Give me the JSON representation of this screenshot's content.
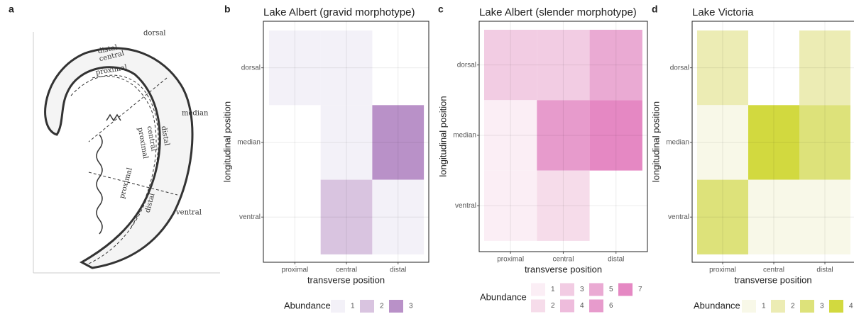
{
  "panels": [
    "a",
    "b",
    "c",
    "d"
  ],
  "illustration": {
    "labels": [
      "distal",
      "central",
      "proximal",
      "dorsal",
      "median",
      "ventral",
      "proximal",
      "central",
      "distal",
      "proximal",
      "distal"
    ]
  },
  "chart_data": [
    {
      "type": "heatmap",
      "title": "Lake Albert (gravid morphotype)",
      "xlabel": "transverse position",
      "ylabel": "longitudinal position",
      "x": [
        "proximal",
        "central",
        "distal"
      ],
      "y": [
        "dorsal",
        "median",
        "ventral"
      ],
      "z": [
        [
          1,
          1,
          null
        ],
        [
          null,
          1,
          3
        ],
        [
          null,
          2,
          1
        ]
      ],
      "legend": {
        "title": "Abundance",
        "levels": [
          1,
          2,
          3
        ],
        "colors": [
          "#f3f1f8",
          "#d9c4e0",
          "#b991c8"
        ]
      }
    },
    {
      "type": "heatmap",
      "title": "Lake Albert (slender morphotype)",
      "xlabel": "transverse position",
      "ylabel": "longitudinal position",
      "x": [
        "proximal",
        "central",
        "distal"
      ],
      "y": [
        "dorsal",
        "median",
        "ventral"
      ],
      "z": [
        [
          3,
          3,
          5
        ],
        [
          1,
          6,
          7
        ],
        [
          1,
          2,
          null
        ]
      ],
      "legend": {
        "title": "Abundance",
        "levels": [
          1,
          2,
          3,
          4,
          5,
          6,
          7
        ],
        "colors": [
          "#fbeef5",
          "#f6dcea",
          "#f2cce3",
          "#eebcdc",
          "#eaaad3",
          "#e79bcc",
          "#e588c3"
        ]
      }
    },
    {
      "type": "heatmap",
      "title": "Lake Victoria",
      "xlabel": "transverse position",
      "ylabel": "longitudinal position",
      "x": [
        "proximal",
        "central",
        "distal"
      ],
      "y": [
        "dorsal",
        "median",
        "ventral"
      ],
      "z": [
        [
          2,
          null,
          2
        ],
        [
          1,
          4,
          3
        ],
        [
          3,
          1,
          1
        ]
      ],
      "legend": {
        "title": "Abundance",
        "levels": [
          1,
          2,
          3,
          4
        ],
        "colors": [
          "#f8f8e8",
          "#ececb4",
          "#dde27a",
          "#d2d93f"
        ]
      }
    }
  ]
}
